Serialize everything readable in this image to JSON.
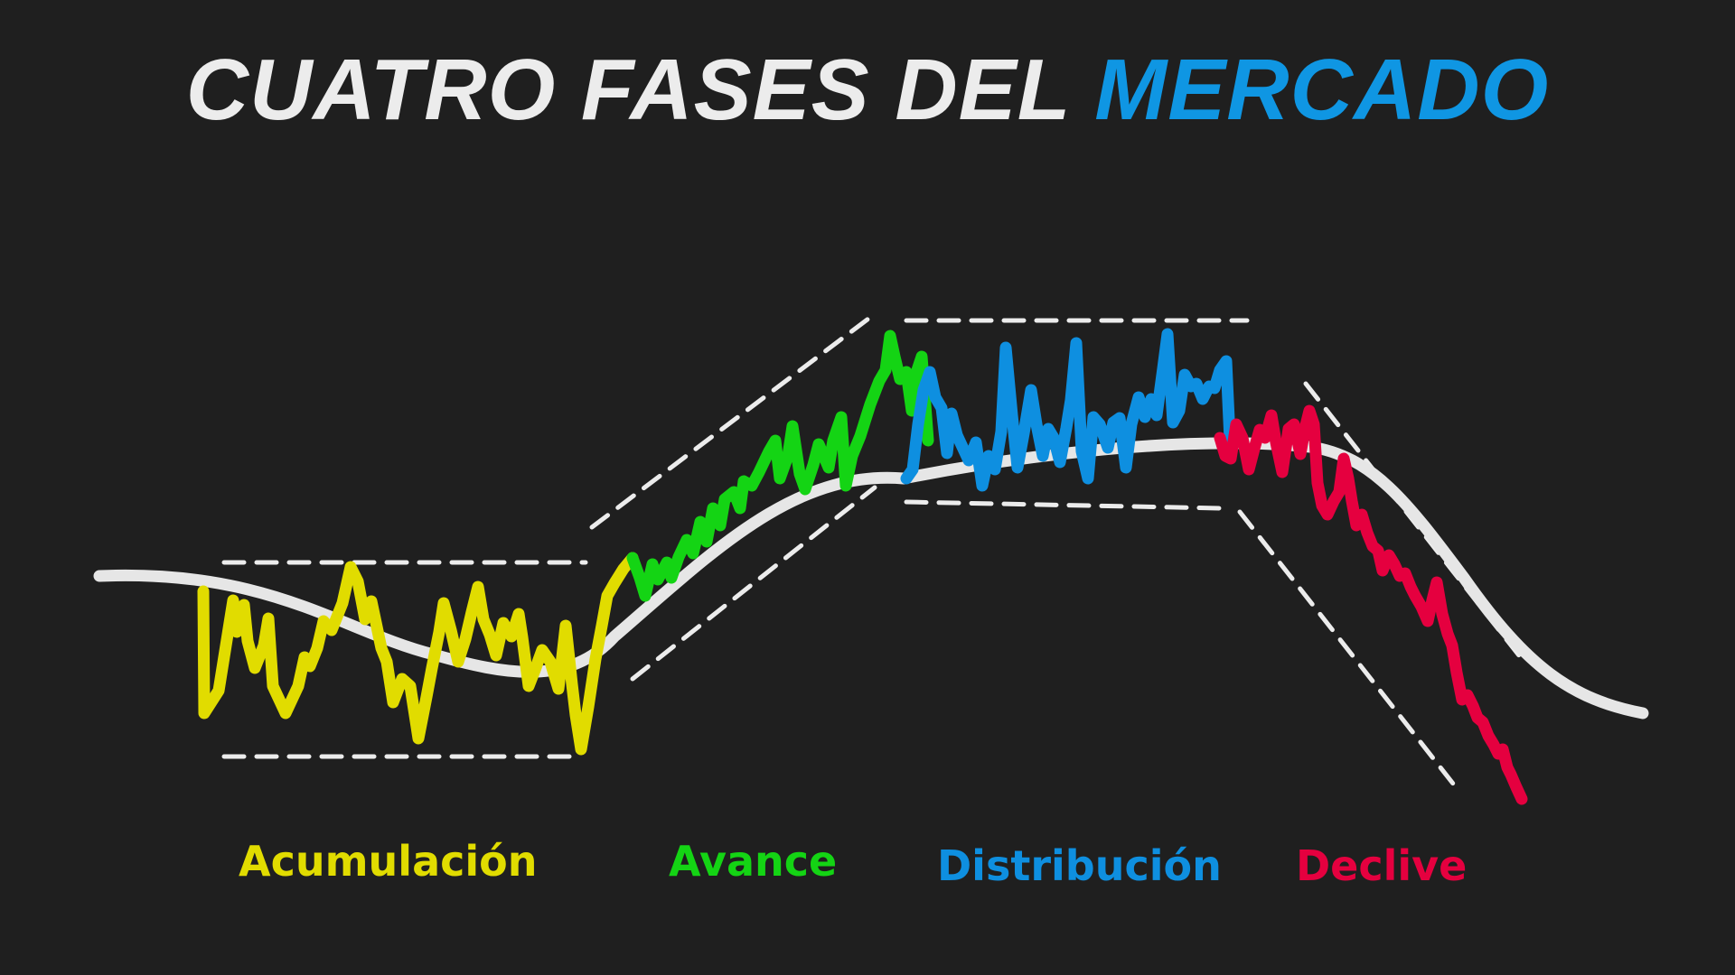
{
  "title": {
    "part1": "CUATRO FASES DEL",
    "part2": "MERCADO"
  },
  "colors": {
    "background": "#1f1f1f",
    "trend_line": "#e6e6e6",
    "channel_dash": "#ececec",
    "title_main": "#ececec",
    "title_accent": "#0f96e3"
  },
  "phases": [
    {
      "key": "acumulacion",
      "label": "Acumulación",
      "color": "#e1dc00"
    },
    {
      "key": "avance",
      "label": "Avance",
      "color": "#14d414"
    },
    {
      "key": "distribucion",
      "label": "Distribución",
      "color": "#0e8fe0"
    },
    {
      "key": "declive",
      "label": "Declive",
      "color": "#e5003f"
    }
  ]
}
